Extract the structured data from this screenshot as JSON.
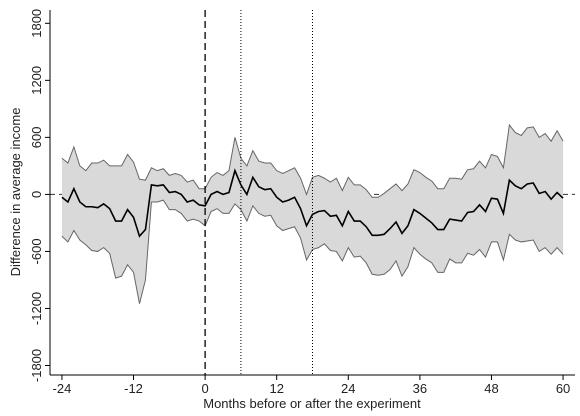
{
  "chart_data": {
    "type": "band-line",
    "x_label": "Months before or after the experiment",
    "y_label": "Difference in average income",
    "xlim": [
      -26,
      62
    ],
    "ylim": [
      -1900,
      1940
    ],
    "xticks": [
      -24,
      -12,
      0,
      12,
      24,
      36,
      48,
      60
    ],
    "yticks": [
      -1800,
      -1200,
      -600,
      0,
      600,
      1200,
      1800
    ],
    "x": [
      -24,
      -23,
      -22,
      -21,
      -20,
      -19,
      -18,
      -17,
      -16,
      -15,
      -14,
      -13,
      -12,
      -11,
      -10,
      -9,
      -8,
      -7,
      -6,
      -5,
      -4,
      -3,
      -2,
      -1,
      0,
      1,
      2,
      3,
      4,
      5,
      6,
      7,
      8,
      9,
      10,
      11,
      12,
      13,
      14,
      15,
      16,
      17,
      18,
      19,
      20,
      21,
      22,
      23,
      24,
      25,
      26,
      27,
      28,
      29,
      30,
      31,
      32,
      33,
      34,
      35,
      36,
      37,
      38,
      39,
      40,
      41,
      42,
      43,
      44,
      45,
      46,
      47,
      48,
      49,
      50,
      51,
      52,
      53,
      54,
      55,
      56,
      57,
      58,
      59,
      60
    ],
    "values": [
      -30,
      -80,
      60,
      -80,
      -130,
      -130,
      -140,
      -100,
      -150,
      -280,
      -280,
      -160,
      -240,
      -440,
      -370,
      100,
      90,
      100,
      20,
      30,
      0,
      -80,
      -60,
      -110,
      -120,
      0,
      30,
      0,
      20,
      250,
      100,
      0,
      180,
      80,
      50,
      60,
      -30,
      -80,
      -60,
      -30,
      -150,
      -330,
      -210,
      -180,
      -170,
      -230,
      -220,
      -330,
      -180,
      -280,
      -280,
      -340,
      -430,
      -430,
      -420,
      -360,
      -290,
      -410,
      -330,
      -160,
      -200,
      -250,
      -300,
      -370,
      -370,
      -260,
      -270,
      -280,
      -190,
      -180,
      -110,
      -180,
      -40,
      -50,
      -200,
      150,
      90,
      60,
      110,
      120,
      10,
      30,
      -50,
      20,
      -40
    ],
    "upper": [
      380,
      330,
      500,
      300,
      250,
      330,
      330,
      360,
      300,
      300,
      300,
      420,
      340,
      160,
      150,
      280,
      250,
      270,
      200,
      220,
      200,
      130,
      150,
      60,
      60,
      180,
      230,
      200,
      250,
      600,
      380,
      300,
      460,
      350,
      330,
      330,
      250,
      220,
      250,
      280,
      170,
      0,
      180,
      200,
      170,
      130,
      170,
      40,
      180,
      100,
      100,
      50,
      -30,
      -30,
      10,
      60,
      110,
      40,
      110,
      260,
      230,
      180,
      140,
      60,
      60,
      170,
      170,
      160,
      260,
      270,
      350,
      280,
      420,
      400,
      280,
      730,
      650,
      620,
      700,
      710,
      600,
      640,
      560,
      670,
      560
    ],
    "lower": [
      -440,
      -500,
      -380,
      -480,
      -530,
      -590,
      -600,
      -560,
      -620,
      -880,
      -860,
      -740,
      -820,
      -1150,
      -900,
      -80,
      -80,
      -60,
      -160,
      -160,
      -200,
      -280,
      -260,
      -280,
      -330,
      -180,
      -150,
      -200,
      -200,
      -100,
      -160,
      -280,
      -120,
      -200,
      -230,
      -220,
      -330,
      -380,
      -360,
      -340,
      -460,
      -690,
      -580,
      -560,
      -520,
      -590,
      -600,
      -700,
      -560,
      -660,
      -650,
      -720,
      -840,
      -850,
      -840,
      -790,
      -700,
      -860,
      -760,
      -560,
      -630,
      -680,
      -720,
      -820,
      -820,
      -680,
      -720,
      -720,
      -620,
      -640,
      -580,
      -660,
      -500,
      -500,
      -690,
      -420,
      -480,
      -500,
      -490,
      -480,
      -600,
      -560,
      -630,
      -560,
      -630
    ],
    "color": "#000000",
    "band_color": "#d9d9d9",
    "band_edge_color": "#666666",
    "hline": 0,
    "vlines": [
      {
        "value": 0,
        "style": "dashed"
      },
      {
        "value": 6,
        "style": "dotted"
      },
      {
        "value": 18,
        "style": "dotted"
      }
    ]
  }
}
